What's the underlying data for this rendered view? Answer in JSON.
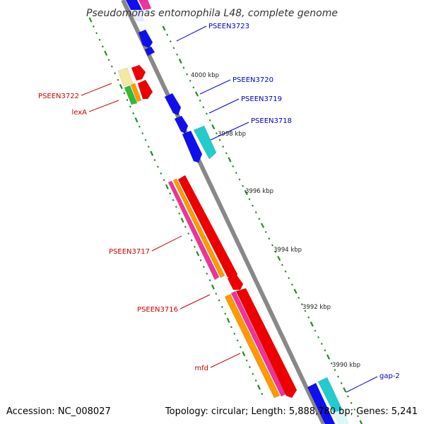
{
  "title": "Pseudomonas entomophila L48, complete genome",
  "footer": {
    "accession": "Accession: NC_008027",
    "summary": "Topology: circular; Length: 5,888,780 bp; Genes: 5,241"
  },
  "tick_labels": [
    "4000 kbp",
    "3998 kbp",
    "3996 kbp",
    "3994 kbp",
    "3992 kbp",
    "3990 kbp"
  ],
  "gene_labels": {
    "right": [
      "PSEEN3723",
      "PSEEN3720",
      "PSEEN3719",
      "PSEEN3718",
      "gap-2"
    ],
    "left": [
      "PSEEN3722",
      "lexA",
      "PSEEN3717",
      "PSEEN3716",
      "mfd"
    ]
  },
  "colors": {
    "backbone": "#888888",
    "dots": "#228B22",
    "right_label": "#0000CC",
    "left_label": "#CC0000",
    "blue": "#1010EE",
    "cyan": "#22CCCC",
    "red": "#EE0000",
    "orange": "#FF9900",
    "magenta": "#EE3399",
    "green": "#33BB33",
    "yellow": "#F5E8A0"
  }
}
